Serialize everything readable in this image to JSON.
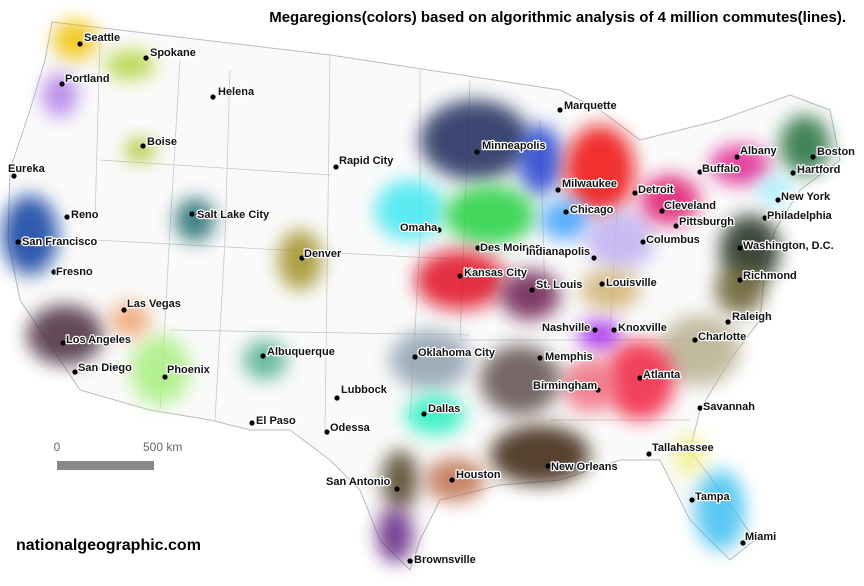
{
  "title": "Megaregions(colors) based on algorithmic analysis of 4 million commutes(lines).",
  "cities": [
    {
      "label": "Seattle"
    },
    {
      "label": "Spokane"
    },
    {
      "label": "Portland"
    },
    {
      "label": "Helena"
    },
    {
      "label": "Boise"
    },
    {
      "label": "Marquette"
    },
    {
      "label": "Minneapolis"
    },
    {
      "label": "Rapid City"
    },
    {
      "label": "Eureka"
    },
    {
      "label": "Reno"
    },
    {
      "label": "Salt Lake City"
    },
    {
      "label": "San Francisco"
    },
    {
      "label": "Fresno"
    },
    {
      "label": "Omaha"
    },
    {
      "label": "Des Moines"
    },
    {
      "label": "Milwaukee"
    },
    {
      "label": "Chicago"
    },
    {
      "label": "Detroit"
    },
    {
      "label": "Cleveland"
    },
    {
      "label": "Buffalo"
    },
    {
      "label": "Albany"
    },
    {
      "label": "Boston"
    },
    {
      "label": "Hartford"
    },
    {
      "label": "New York"
    },
    {
      "label": "Pittsburgh"
    },
    {
      "label": "Philadelphia"
    },
    {
      "label": "Washington, D.C."
    },
    {
      "label": "Columbus"
    },
    {
      "label": "Indianapolis"
    },
    {
      "label": "Denver"
    },
    {
      "label": "Kansas City"
    },
    {
      "label": "St. Louis"
    },
    {
      "label": "Louisville"
    },
    {
      "label": "Richmond"
    },
    {
      "label": "Las Vegas"
    },
    {
      "label": "Raleigh"
    },
    {
      "label": "Nashville"
    },
    {
      "label": "Knoxville"
    },
    {
      "label": "Charlotte"
    },
    {
      "label": "Los Angeles"
    },
    {
      "label": "Albuquerque"
    },
    {
      "label": "Oklahoma City"
    },
    {
      "label": "Memphis"
    },
    {
      "label": "San Diego"
    },
    {
      "label": "Phoenix"
    },
    {
      "label": "Atlanta"
    },
    {
      "label": "Birmingham"
    },
    {
      "label": "Lubbock"
    },
    {
      "label": "Savannah"
    },
    {
      "label": "Dallas"
    },
    {
      "label": "El Paso"
    },
    {
      "label": "Odessa"
    },
    {
      "label": "Tallahassee"
    },
    {
      "label": "New Orleans"
    },
    {
      "label": "Houston"
    },
    {
      "label": "San Antonio"
    },
    {
      "label": "Tampa"
    },
    {
      "label": "Miami"
    },
    {
      "label": "Brownsville"
    }
  ],
  "scale": {
    "labels": [
      "0",
      "500 km"
    ]
  },
  "credit": "nationalgeographic.com"
}
